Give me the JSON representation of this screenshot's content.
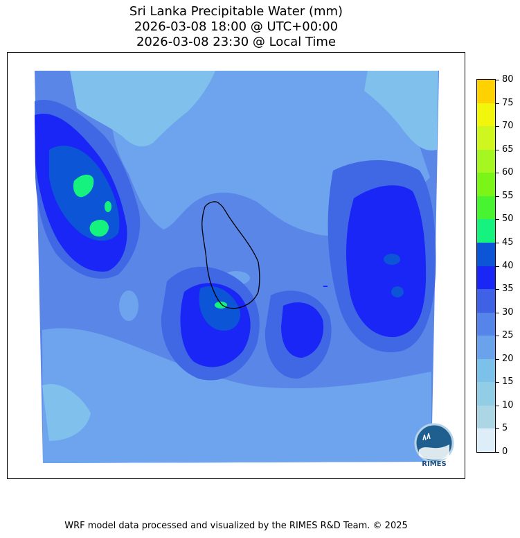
{
  "title": {
    "line1": "Sri Lanka Precipitable Water (mm)",
    "line2": "2026-03-08 18:00 @ UTC+00:00",
    "line3": "2026-03-08 23:30 @ Local Time"
  },
  "colorbar": {
    "levels": [
      {
        "value": 0,
        "color": "#ddeef8"
      },
      {
        "value": 5,
        "color": "#acd6e3"
      },
      {
        "value": 10,
        "color": "#92cde6"
      },
      {
        "value": 15,
        "color": "#7cc1ea"
      },
      {
        "value": 20,
        "color": "#6aa2ec"
      },
      {
        "value": 25,
        "color": "#5685ea"
      },
      {
        "value": 30,
        "color": "#3f61e6"
      },
      {
        "value": 35,
        "color": "#1a26f6"
      },
      {
        "value": 40,
        "color": "#0b55d6"
      },
      {
        "value": 45,
        "color": "#15f27e"
      },
      {
        "value": 50,
        "color": "#48f32f"
      },
      {
        "value": 55,
        "color": "#7bf517"
      },
      {
        "value": 60,
        "color": "#a6f621"
      },
      {
        "value": 65,
        "color": "#cff61e"
      },
      {
        "value": 70,
        "color": "#f2f60c"
      },
      {
        "value": 75,
        "color": "#fed200"
      },
      {
        "value": 80,
        "color": ""
      }
    ],
    "labels": [
      "0",
      "5",
      "10",
      "15",
      "20",
      "25",
      "30",
      "35",
      "40",
      "45",
      "50",
      "55",
      "60",
      "65",
      "70",
      "75",
      "80"
    ]
  },
  "map": {
    "region": "Sri Lanka",
    "palette": {
      "base": "#5a86e8",
      "light": "#6ea4ee",
      "lighter": "#7fc1ec",
      "mid": "#4068e4",
      "dark": "#1a26f6",
      "darker": "#0b55d6",
      "green": "#15f27e",
      "coast": "#000000"
    }
  },
  "logo": {
    "text": "RIMES"
  },
  "footer": "WRF model data processed and visualized by the RIMES R&D Team. © 2025"
}
